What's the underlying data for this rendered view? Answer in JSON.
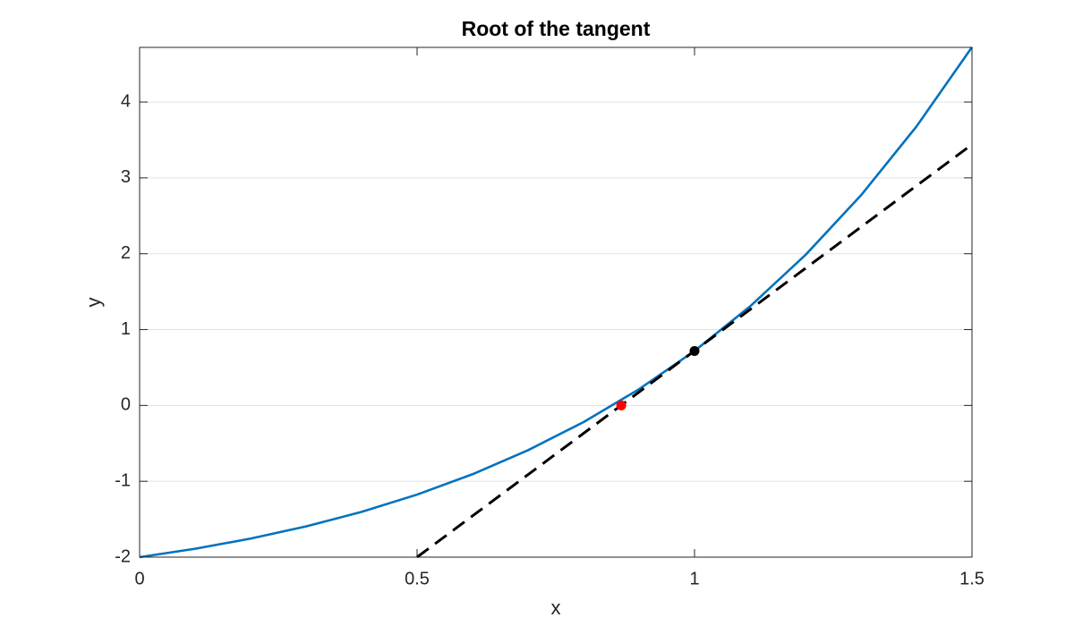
{
  "chart_data": {
    "type": "line",
    "title": "Root of the tangent",
    "x_label": "x",
    "y_label": "y",
    "xlim": [
      0,
      1.5
    ],
    "ylim": [
      -2,
      4.72
    ],
    "xticks": [
      0,
      0.5,
      1,
      1.5
    ],
    "yticks": [
      -2,
      -1,
      0,
      1,
      2,
      3,
      4
    ],
    "grid": "y",
    "series": [
      {
        "color": "#0072bd",
        "line_style": "solid",
        "x": [
          0,
          0.1,
          0.2,
          0.3,
          0.4,
          0.5,
          0.6,
          0.7,
          0.8,
          0.9,
          1.0,
          1.1,
          1.2,
          1.3,
          1.4,
          1.5
        ],
        "values": [
          -2,
          -1.8895,
          -1.7557,
          -1.595,
          -1.4033,
          -1.1756,
          -0.9067,
          -0.5904,
          -0.2196,
          0.2136,
          0.7183,
          1.3046,
          1.9841,
          2.7701,
          3.6773,
          4.7225
        ]
      },
      {
        "color": "#000000",
        "line_style": "dashed",
        "x": [
          0.5,
          1.5
        ],
        "values": [
          -2,
          3.44
        ]
      },
      {
        "color": "#000000",
        "marker": "dot",
        "x": [
          1
        ],
        "values": [
          0.718
        ]
      },
      {
        "color": "#ff0000",
        "marker": "dot",
        "x": [
          0.868
        ],
        "values": [
          0
        ]
      }
    ]
  }
}
